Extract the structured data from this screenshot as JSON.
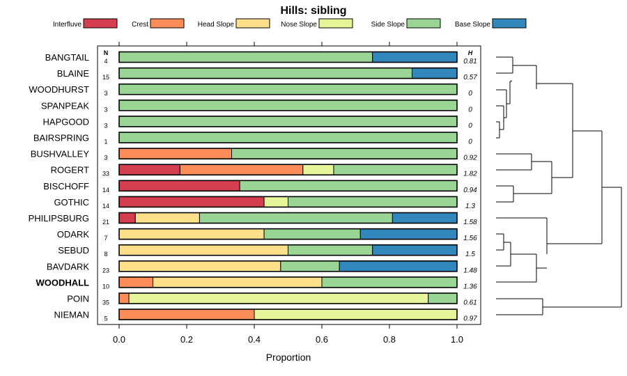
{
  "chart_data": {
    "type": "bar",
    "stacked": true,
    "orientation": "horizontal",
    "title": "Hills: sibling",
    "xlabel": "Proportion",
    "ylabel": "",
    "xlim": [
      0,
      1
    ],
    "xticks": [
      "0.0",
      "0.2",
      "0.4",
      "0.6",
      "0.8",
      "1.0"
    ],
    "n_header": "N",
    "h_header": "H",
    "highlight": "WOODHALL",
    "legend": [
      {
        "name": "Interfluve",
        "color": "#d53e4f"
      },
      {
        "name": "Crest",
        "color": "#fc8d59"
      },
      {
        "name": "Head Slope",
        "color": "#fee08b"
      },
      {
        "name": "Nose Slope",
        "color": "#e6f598"
      },
      {
        "name": "Side Slope",
        "color": "#99d594"
      },
      {
        "name": "Base Slope",
        "color": "#3288bd"
      }
    ],
    "series": [
      {
        "name": "Interfluve",
        "values": [
          0,
          0,
          0,
          0,
          0,
          0,
          0,
          0.18,
          0.357,
          0.429,
          0.048,
          0,
          0,
          0,
          0,
          0,
          0
        ]
      },
      {
        "name": "Crest",
        "values": [
          0,
          0,
          0,
          0,
          0,
          0,
          0.333,
          0.364,
          0,
          0,
          0,
          0,
          0,
          0,
          0.1,
          0.029,
          0.4
        ]
      },
      {
        "name": "Head Slope",
        "values": [
          0,
          0,
          0,
          0,
          0,
          0,
          0,
          0,
          0,
          0,
          0.19,
          0.429,
          0.5,
          0.478,
          0.5,
          0,
          0
        ]
      },
      {
        "name": "Nose Slope",
        "values": [
          0,
          0,
          0,
          0,
          0,
          0,
          0,
          0.091,
          0,
          0.071,
          0,
          0,
          0,
          0,
          0,
          0.886,
          0.6
        ]
      },
      {
        "name": "Side Slope",
        "values": [
          0.75,
          0.867,
          1,
          1,
          1,
          1,
          0.667,
          0.365,
          0.643,
          0.5,
          0.571,
          0.285,
          0.25,
          0.174,
          0.4,
          0.085,
          0
        ]
      },
      {
        "name": "Base Slope",
        "values": [
          0.25,
          0.133,
          0,
          0,
          0,
          0,
          0,
          0,
          0,
          0,
          0.191,
          0.286,
          0.25,
          0.348,
          0,
          0,
          0
        ]
      }
    ],
    "rows": [
      {
        "label": "BANGTAIL",
        "n": "4",
        "h": "0.81"
      },
      {
        "label": "BLAINE",
        "n": "15",
        "h": "0.57"
      },
      {
        "label": "WOODHURST",
        "n": "3",
        "h": "0"
      },
      {
        "label": "SPANPEAK",
        "n": "3",
        "h": "0"
      },
      {
        "label": "HAPGOOD",
        "n": "3",
        "h": "0"
      },
      {
        "label": "BAIRSPRING",
        "n": "1",
        "h": "0"
      },
      {
        "label": "BUSHVALLEY",
        "n": "3",
        "h": "0.92"
      },
      {
        "label": "ROGERT",
        "n": "33",
        "h": "1.82"
      },
      {
        "label": "BISCHOFF",
        "n": "14",
        "h": "0.94"
      },
      {
        "label": "GOTHIC",
        "n": "14",
        "h": "1.3"
      },
      {
        "label": "PHILIPSBURG",
        "n": "21",
        "h": "1.58"
      },
      {
        "label": "ODARK",
        "n": "7",
        "h": "1.56"
      },
      {
        "label": "SEBUD",
        "n": "8",
        "h": "1.5"
      },
      {
        "label": "BAVDARK",
        "n": "23",
        "h": "1.48"
      },
      {
        "label": "WOODHALL",
        "n": "10",
        "h": "1.36"
      },
      {
        "label": "POIN",
        "n": "35",
        "h": "0.61"
      },
      {
        "label": "NIEMAN",
        "n": "5",
        "h": "0.97"
      }
    ]
  }
}
